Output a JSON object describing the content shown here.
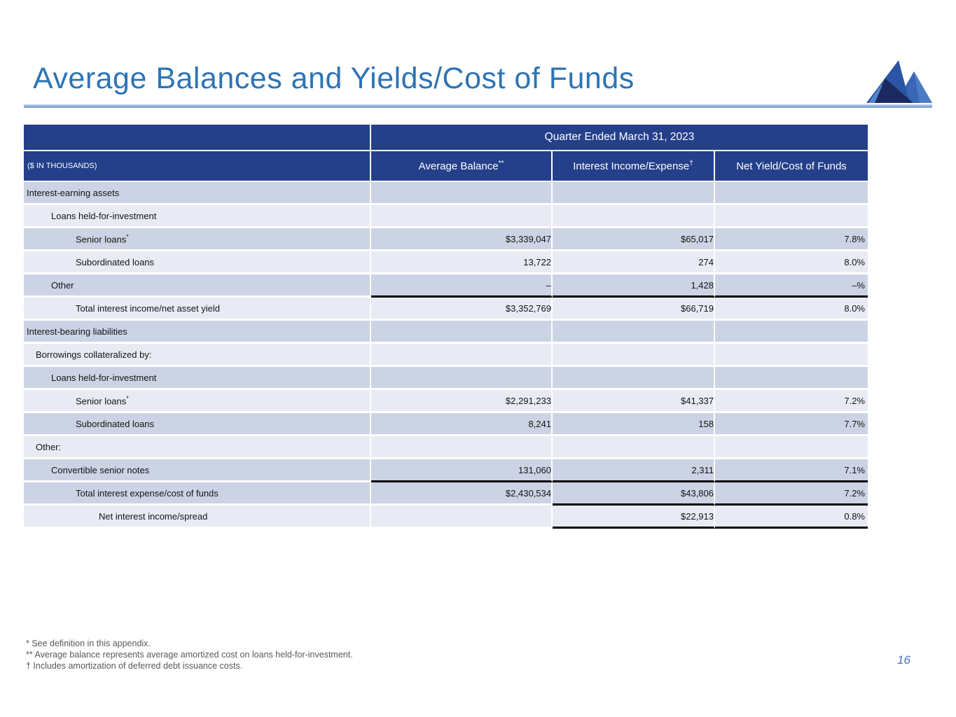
{
  "page": {
    "title": "Average Balances and Yields/Cost of Funds",
    "page_number": "16"
  },
  "logo": {
    "icon": "mountain-logo"
  },
  "colors": {
    "title_blue": "#2E74B5",
    "header_navy": "#24408A",
    "band_dark": "#CCD3E4",
    "band_light": "#E9EBF4",
    "rule_blue": "#7EA3D7",
    "total_line_black": "#000000",
    "footnote_gray": "#595959",
    "page_number_blue": "#4472C4"
  },
  "table": {
    "period_header": "Quarter Ended March 31, 2023",
    "units_note": "($ IN THOUSANDS)",
    "columns": [
      {
        "label": "Average Balance",
        "sup": "**"
      },
      {
        "label": "Interest Income/Expense",
        "sup": "†"
      },
      {
        "label": "Net Yield/Cost of Funds",
        "sup": ""
      }
    ],
    "rows": [
      {
        "label": "Interest-earning assets",
        "sup": "",
        "indent": 0,
        "shade": "dark",
        "avg": "",
        "inc": "",
        "yld": "",
        "rules": []
      },
      {
        "label": "Loans held-for-investment",
        "sup": "",
        "indent": 2,
        "shade": "light",
        "avg": "",
        "inc": "",
        "yld": "",
        "rules": []
      },
      {
        "label": "Senior loans",
        "sup": "*",
        "indent": 3,
        "shade": "dark",
        "avg": "$3,339,047",
        "inc": "$65,017",
        "yld": "7.8%",
        "rules": []
      },
      {
        "label": "Subordinated loans",
        "sup": "",
        "indent": 3,
        "shade": "light",
        "avg": "13,722",
        "inc": "274",
        "yld": "8.0%",
        "rules": []
      },
      {
        "label": "Other",
        "sup": "",
        "indent": 2,
        "shade": "dark",
        "avg": "–",
        "inc": "1,428",
        "yld": "–%",
        "rules": [
          "avg",
          "inc",
          "yld"
        ]
      },
      {
        "label": "Total interest income/net asset yield",
        "sup": "",
        "indent": 3,
        "shade": "light",
        "avg": "$3,352,769",
        "inc": "$66,719",
        "yld": "8.0%",
        "rules": []
      },
      {
        "label": "Interest-bearing liabilities",
        "sup": "",
        "indent": 0,
        "shade": "dark",
        "avg": "",
        "inc": "",
        "yld": "",
        "rules": []
      },
      {
        "label": "Borrowings collateralized by:",
        "sup": "",
        "indent": 1,
        "shade": "light",
        "avg": "",
        "inc": "",
        "yld": "",
        "rules": []
      },
      {
        "label": "Loans held-for-investment",
        "sup": "",
        "indent": 2,
        "shade": "dark",
        "avg": "",
        "inc": "",
        "yld": "",
        "rules": []
      },
      {
        "label": "Senior loans",
        "sup": "*",
        "indent": 3,
        "shade": "light",
        "avg": "$2,291,233",
        "inc": "$41,337",
        "yld": "7.2%",
        "rules": []
      },
      {
        "label": "Subordinated loans",
        "sup": "",
        "indent": 3,
        "shade": "dark",
        "avg": "8,241",
        "inc": "158",
        "yld": "7.7%",
        "rules": []
      },
      {
        "label": "Other:",
        "sup": "",
        "indent": 1,
        "shade": "light",
        "avg": "",
        "inc": "",
        "yld": "",
        "rules": []
      },
      {
        "label": "Convertible senior notes",
        "sup": "",
        "indent": 2,
        "shade": "dark",
        "avg": "131,060",
        "inc": "2,311",
        "yld": "7.1%",
        "rules": [
          "avg",
          "inc",
          "yld"
        ]
      },
      {
        "label": "Total interest expense/cost of funds",
        "sup": "",
        "indent": 3,
        "shade": "dark",
        "avg": "$2,430,534",
        "inc": "$43,806",
        "yld": "7.2%",
        "rules": [
          "inc",
          "yld"
        ]
      },
      {
        "label": "Net interest income/spread",
        "sup": "",
        "indent": 4,
        "shade": "light",
        "avg": "",
        "inc": "$22,913",
        "yld": "0.8%",
        "rules": [
          "inc",
          "yld"
        ]
      }
    ]
  },
  "footnotes": [
    "* See definition in this appendix.",
    "** Average balance represents average amortized cost on loans held-for-investment.",
    "† Includes amortization of deferred debt issuance costs."
  ]
}
